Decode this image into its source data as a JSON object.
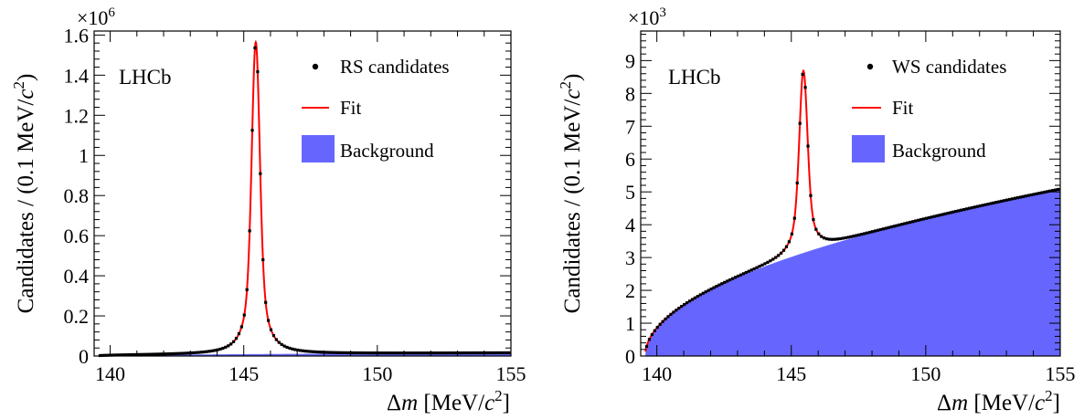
{
  "chart_data": [
    {
      "type": "line",
      "panel": "RS",
      "experiment_label": "LHCb",
      "multiplier": "×10",
      "multiplier_exp": "6",
      "ylabel": {
        "main": "Candidates / (0.1 MeV/",
        "italic": "c",
        "sup": "2",
        "close": ")"
      },
      "xlabel": {
        "delta": "Δ",
        "m": "m",
        "units": " [MeV/",
        "italic": "c",
        "sup": "2",
        "close": "]"
      },
      "xlim": [
        139.4,
        155.0
      ],
      "ylim": [
        0,
        1.62
      ],
      "x_ticks": [
        140,
        145,
        150,
        155
      ],
      "x_tick_labels": [
        "140",
        "145",
        "150",
        "155"
      ],
      "y_ticks": [
        0,
        0.2,
        0.4,
        0.6,
        0.8,
        1.0,
        1.2,
        1.4,
        1.6
      ],
      "y_tick_labels": [
        "0",
        "0.2",
        "0.4",
        "0.6",
        "0.8",
        "1",
        "1.2",
        "1.4",
        "1.6"
      ],
      "legend_position": "top-right",
      "legend": {
        "data": "RS candidates",
        "fit": "Fit",
        "background": "Background"
      },
      "peak": {
        "mean": 145.45,
        "amplitude": 1.555,
        "sigma": 0.14,
        "gamma": 0.26,
        "gauss_frac": 0.55
      },
      "background": {
        "threshold": 139.57,
        "scale": 0.004,
        "power": 0.5
      },
      "x": [
        139.8,
        141.0,
        142.0,
        143.0,
        144.0,
        144.4,
        144.6,
        144.8,
        144.9,
        145.0,
        145.1,
        145.2,
        145.3,
        145.4,
        145.45,
        145.5,
        145.6,
        145.7,
        145.8,
        145.9,
        146.0,
        146.1,
        146.2,
        146.4,
        146.6,
        147.0,
        148.0,
        150.0,
        152.0,
        154.0,
        155.0
      ],
      "y": [
        0.004,
        0.005,
        0.007,
        0.011,
        0.03,
        0.056,
        0.085,
        0.148,
        0.21,
        0.33,
        0.52,
        0.83,
        1.21,
        1.49,
        1.555,
        1.5,
        1.19,
        0.81,
        0.5,
        0.3,
        0.19,
        0.135,
        0.1,
        0.062,
        0.043,
        0.025,
        0.013,
        0.008,
        0.008,
        0.008,
        0.008
      ],
      "colors": {
        "fit": "#ff0000",
        "background": "#6666ff",
        "data": "#000000"
      }
    },
    {
      "type": "line",
      "panel": "WS",
      "experiment_label": "LHCb",
      "multiplier": "×10",
      "multiplier_exp": "3",
      "ylabel": {
        "main": "Candidates / (0.1 MeV/",
        "italic": "c",
        "sup": "2",
        "close": ")"
      },
      "xlabel": {
        "delta": "Δ",
        "m": "m",
        "units": " [MeV/",
        "italic": "c",
        "sup": "2",
        "close": "]"
      },
      "xlim": [
        139.4,
        155.0
      ],
      "ylim": [
        0,
        9.9
      ],
      "x_ticks": [
        140,
        145,
        150,
        155
      ],
      "x_tick_labels": [
        "140",
        "145",
        "150",
        "155"
      ],
      "y_ticks": [
        0,
        1,
        2,
        3,
        4,
        5,
        6,
        7,
        8,
        9
      ],
      "y_tick_labels": [
        "0",
        "1",
        "2",
        "3",
        "4",
        "5",
        "6",
        "7",
        "8",
        "9"
      ],
      "legend_position": "top-right",
      "legend": {
        "data": "WS candidates",
        "fit": "Fit",
        "background": "Background"
      },
      "peak": {
        "mean": 145.45,
        "amplitude": 5.55,
        "sigma": 0.14,
        "gamma": 0.26,
        "gauss_frac": 0.55
      },
      "background": {
        "threshold": 139.57,
        "scale": 1.295,
        "power": 0.5
      },
      "x": [
        139.6,
        139.8,
        140.0,
        140.5,
        141.0,
        141.5,
        142.0,
        142.5,
        143.0,
        143.5,
        144.0,
        144.5,
        144.8,
        145.0,
        145.2,
        145.45,
        145.6,
        145.8,
        146.0,
        146.5,
        147.0,
        148.0,
        149.0,
        150.0,
        151.0,
        152.0,
        153.0,
        154.0,
        155.0
      ],
      "y": [
        0.2,
        0.65,
        0.9,
        1.3,
        1.62,
        1.9,
        2.15,
        2.37,
        2.62,
        2.8,
        3.0,
        3.2,
        3.56,
        4.2,
        6.7,
        9.5,
        8.4,
        5.8,
        4.3,
        3.95,
        4.1,
        4.2,
        4.3,
        4.45,
        4.55,
        4.7,
        4.85,
        4.95,
        5.0
      ],
      "colors": {
        "fit": "#ff0000",
        "background": "#6666ff",
        "data": "#000000"
      }
    }
  ]
}
